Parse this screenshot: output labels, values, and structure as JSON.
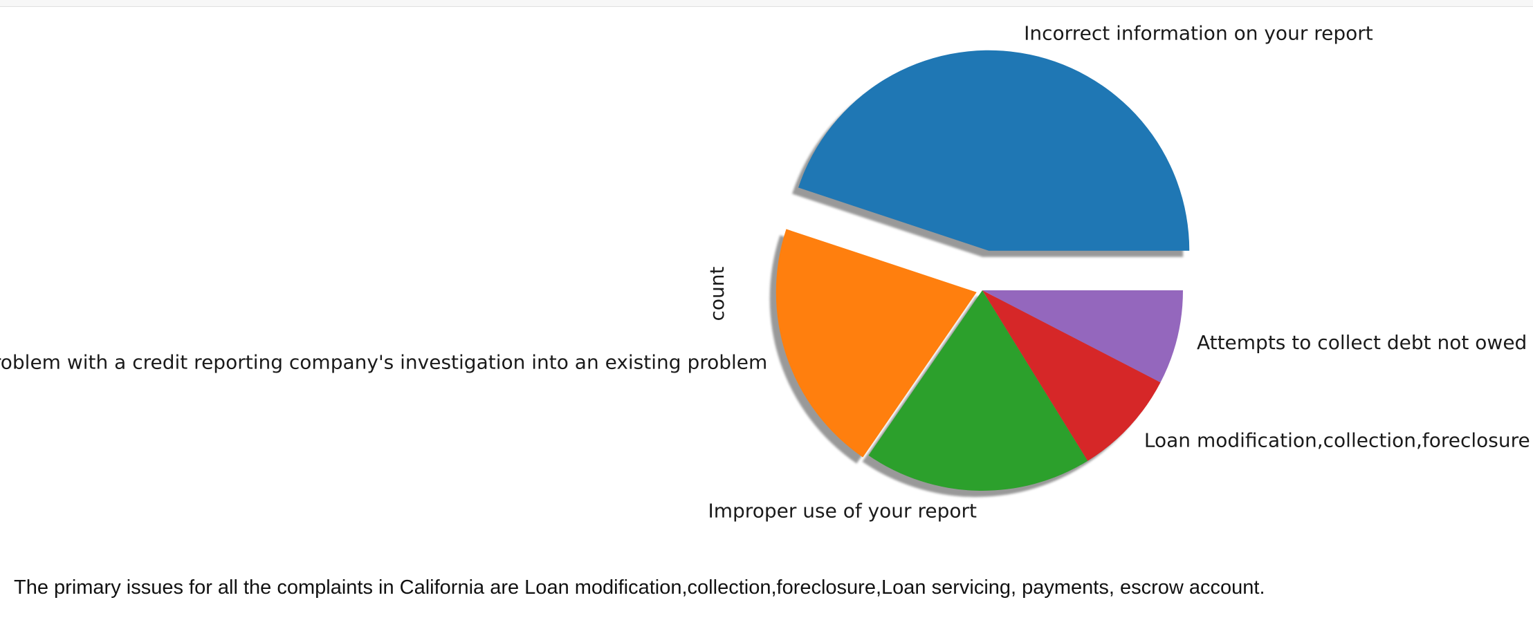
{
  "chart_data": {
    "type": "pie",
    "ylabel": "count",
    "startangle": 0,
    "shadow": true,
    "slices": [
      {
        "label": "Incorrect information on your report",
        "value": 44.9,
        "color": "#1f77b4",
        "explode": 0.2
      },
      {
        "label": "Problem with a credit reporting company's investigation into an existing problem",
        "value": 20.5,
        "color": "#ff7f0e",
        "explode": 0.03
      },
      {
        "label": "Improper use of your report",
        "value": 18.4,
        "color": "#2ca02c",
        "explode": 0
      },
      {
        "label": "Loan modification,collection,foreclosure",
        "value": 8.6,
        "color": "#d62728",
        "explode": 0
      },
      {
        "label": "Attempts to collect debt not owed",
        "value": 7.6,
        "color": "#9467bd",
        "explode": 0
      }
    ]
  },
  "caption": "The primary issues for all the complaints in California are Loan modification,collection,foreclosure,Loan servicing, payments, escrow account."
}
